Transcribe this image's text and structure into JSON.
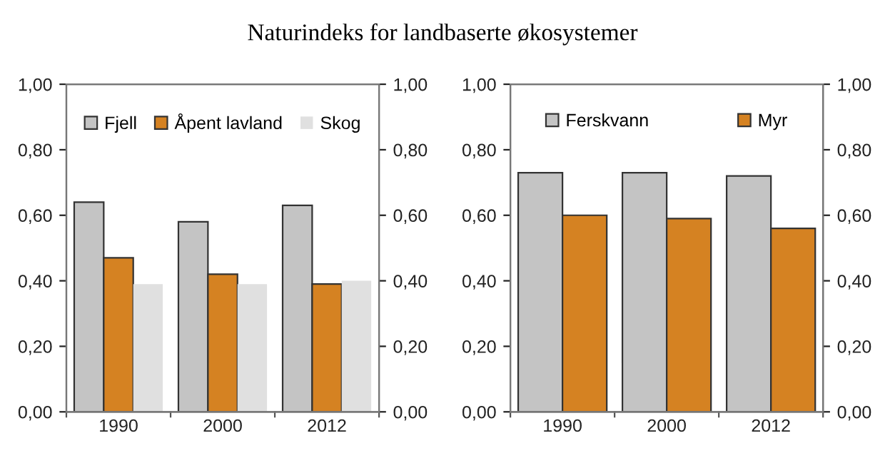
{
  "chart_data": [
    {
      "type": "bar",
      "title": "Naturindeks for landbaserte økosystemer",
      "categories": [
        "1990",
        "2000",
        "2012"
      ],
      "series": [
        {
          "name": "Fjell",
          "color": "#c4c4c4",
          "values": [
            0.64,
            0.58,
            0.63
          ]
        },
        {
          "name": "Åpent lavland",
          "color": "#d58222",
          "values": [
            0.47,
            0.42,
            0.39
          ]
        },
        {
          "name": "Skog",
          "color": "#e0e0e0",
          "values": [
            0.39,
            0.39,
            0.4
          ]
        }
      ],
      "ylim": [
        0,
        1
      ],
      "yticks": [
        {
          "value": 0,
          "label": "0,00"
        },
        {
          "value": 0.2,
          "label": "0,20"
        },
        {
          "value": 0.4,
          "label": "0,40"
        },
        {
          "value": 0.6,
          "label": "0,60"
        },
        {
          "value": 0.8,
          "label": "0,80"
        },
        {
          "value": 1,
          "label": "1,00"
        }
      ],
      "y2lim": [
        0,
        1
      ],
      "y2ticks": [
        {
          "value": 0,
          "label": "0,00"
        },
        {
          "value": 0.2,
          "label": "0,20"
        },
        {
          "value": 0.4,
          "label": "0,40"
        },
        {
          "value": 0.6,
          "label": "0,60"
        },
        {
          "value": 0.8,
          "label": "0,80"
        },
        {
          "value": 1,
          "label": "1,00"
        }
      ],
      "legend": "top",
      "grid": false
    },
    {
      "type": "bar",
      "categories": [
        "1990",
        "2000",
        "2012"
      ],
      "series": [
        {
          "name": "Ferskvann",
          "color": "#c4c4c4",
          "values": [
            0.73,
            0.73,
            0.72
          ]
        },
        {
          "name": "Myr",
          "color": "#d58222",
          "values": [
            0.6,
            0.59,
            0.56
          ]
        }
      ],
      "ylim": [
        0,
        1
      ],
      "yticks": [
        {
          "value": 0,
          "label": "0,00"
        },
        {
          "value": 0.2,
          "label": "0,20"
        },
        {
          "value": 0.4,
          "label": "0,40"
        },
        {
          "value": 0.6,
          "label": "0,60"
        },
        {
          "value": 0.8,
          "label": "0,80"
        },
        {
          "value": 1,
          "label": "1,00"
        }
      ],
      "y2lim": [
        0,
        1
      ],
      "y2ticks": [
        {
          "value": 0,
          "label": "0,00"
        },
        {
          "value": 0.2,
          "label": "0,20"
        },
        {
          "value": 0.4,
          "label": "0,40"
        },
        {
          "value": 0.6,
          "label": "0,60"
        },
        {
          "value": 0.8,
          "label": "0,80"
        },
        {
          "value": 1,
          "label": "1,00"
        }
      ],
      "legend": "top",
      "grid": false
    }
  ]
}
